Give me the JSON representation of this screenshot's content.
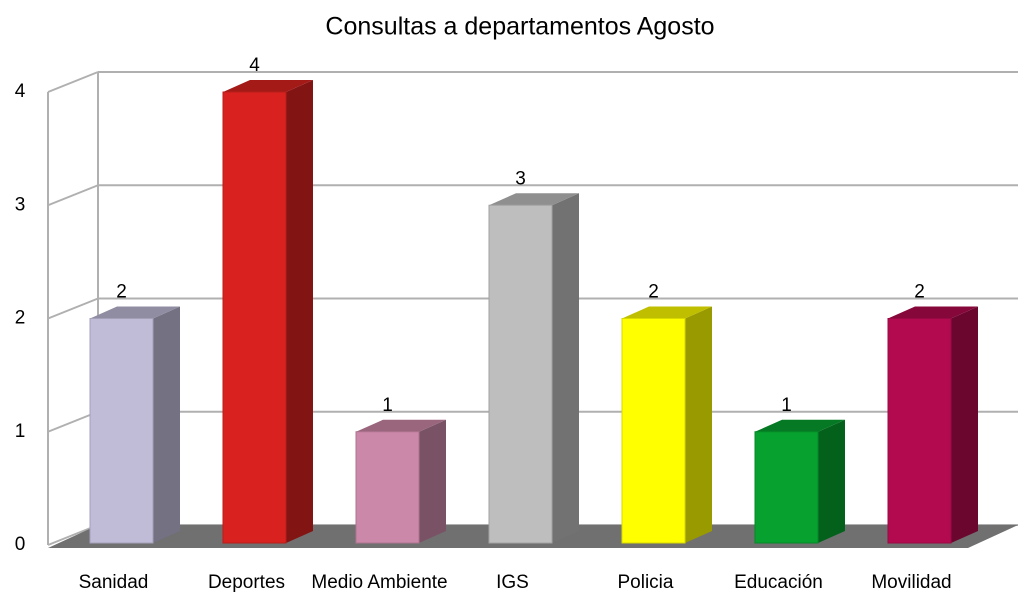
{
  "chart_data": {
    "type": "bar3d",
    "title": "Consultas a departamentos Agosto",
    "categories": [
      "Sanidad",
      "Deportes",
      "Medio Ambiente",
      "IGS",
      "Policia",
      "Educación",
      "Movilidad"
    ],
    "values": [
      2,
      4,
      1,
      3,
      2,
      1,
      2
    ],
    "colors": [
      "#c0bcd8",
      "#d9221f",
      "#cc88a8",
      "#bebebe",
      "#ffff00",
      "#06a12e",
      "#b30a4f"
    ],
    "ylim": [
      0,
      4
    ],
    "yticks": [
      0,
      1,
      2,
      3,
      4
    ],
    "grid": true
  }
}
